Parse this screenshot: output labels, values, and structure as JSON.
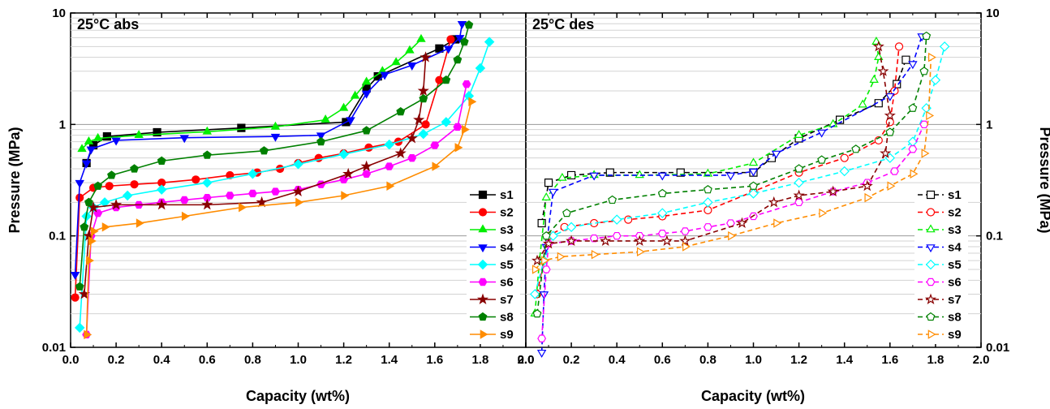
{
  "colors": {
    "s1": "#000000",
    "s2": "#ff0000",
    "s3": "#00ee00",
    "s4": "#0000ff",
    "s5": "#00ffff",
    "s6": "#ff00ff",
    "s7": "#880000",
    "s8": "#008000",
    "s9": "#ff8c00"
  },
  "chart_data": [
    {
      "type": "scatter",
      "title": "25°C abs",
      "xlabel": "Capacity (wt%)",
      "ylabel": "Pressure (MPa)",
      "xlim": [
        0.0,
        2.0
      ],
      "ylim": [
        0.01,
        10
      ],
      "yscale": "log",
      "xticks": [
        "0.0",
        "0.2",
        "0.4",
        "0.6",
        "0.8",
        "1.0",
        "1.2",
        "1.4",
        "1.6",
        "1.8",
        "2.0"
      ],
      "yticks": [
        "0.01",
        "0.1",
        "1",
        "10"
      ],
      "grid": true,
      "legend": "right",
      "marker_style": "filled",
      "line_style": "solid",
      "series": [
        {
          "name": "s1",
          "marker": "square",
          "x": [
            0.07,
            0.1,
            0.16,
            0.38,
            0.75,
            1.21,
            1.3,
            1.35,
            1.62,
            1.69
          ],
          "y": [
            0.45,
            0.65,
            0.78,
            0.85,
            0.93,
            1.05,
            2.1,
            2.7,
            4.8,
            5.8
          ]
        },
        {
          "name": "s2",
          "marker": "circle",
          "x": [
            0.02,
            0.04,
            0.1,
            0.17,
            0.28,
            0.4,
            0.55,
            0.7,
            0.82,
            0.92,
            1.0,
            1.09,
            1.2,
            1.31,
            1.44,
            1.56,
            1.62,
            1.67
          ],
          "y": [
            0.028,
            0.22,
            0.27,
            0.28,
            0.29,
            0.3,
            0.32,
            0.35,
            0.37,
            0.4,
            0.45,
            0.5,
            0.55,
            0.62,
            0.7,
            1.0,
            2.5,
            5.8
          ]
        },
        {
          "name": "s3",
          "marker": "triangle-up",
          "x": [
            0.05,
            0.08,
            0.12,
            0.3,
            0.6,
            0.9,
            1.12,
            1.2,
            1.25,
            1.3,
            1.37,
            1.43,
            1.49,
            1.54
          ],
          "y": [
            0.6,
            0.7,
            0.75,
            0.8,
            0.86,
            0.95,
            1.1,
            1.4,
            1.8,
            2.4,
            3.0,
            3.6,
            4.6,
            5.8
          ]
        },
        {
          "name": "s4",
          "marker": "triangle-down",
          "x": [
            0.02,
            0.04,
            0.07,
            0.09,
            0.2,
            0.5,
            0.9,
            1.1,
            1.23,
            1.3,
            1.38,
            1.5,
            1.66,
            1.71,
            1.72
          ],
          "y": [
            0.045,
            0.3,
            0.45,
            0.6,
            0.72,
            0.76,
            0.78,
            0.8,
            1.1,
            1.9,
            2.8,
            3.4,
            4.8,
            6.0,
            8.0
          ]
        },
        {
          "name": "s5",
          "marker": "diamond",
          "x": [
            0.04,
            0.07,
            0.1,
            0.15,
            0.25,
            0.4,
            0.6,
            0.8,
            1.0,
            1.2,
            1.4,
            1.55,
            1.65,
            1.75,
            1.8,
            1.84
          ],
          "y": [
            0.015,
            0.15,
            0.18,
            0.2,
            0.23,
            0.26,
            0.3,
            0.36,
            0.44,
            0.54,
            0.66,
            0.82,
            1.05,
            1.8,
            3.2,
            5.5
          ]
        },
        {
          "name": "s6",
          "marker": "hexagon",
          "x": [
            0.07,
            0.09,
            0.12,
            0.2,
            0.3,
            0.4,
            0.5,
            0.6,
            0.7,
            0.8,
            0.9,
            1.0,
            1.1,
            1.2,
            1.3,
            1.4,
            1.5,
            1.6,
            1.7,
            1.74
          ],
          "y": [
            0.013,
            0.1,
            0.16,
            0.18,
            0.19,
            0.2,
            0.21,
            0.22,
            0.23,
            0.24,
            0.25,
            0.26,
            0.29,
            0.32,
            0.36,
            0.42,
            0.5,
            0.65,
            0.95,
            2.3
          ]
        },
        {
          "name": "s7",
          "marker": "star",
          "x": [
            0.06,
            0.08,
            0.1,
            0.2,
            0.4,
            0.6,
            0.84,
            1.0,
            1.22,
            1.3,
            1.45,
            1.5,
            1.53,
            1.55,
            1.56
          ],
          "y": [
            0.03,
            0.1,
            0.18,
            0.19,
            0.19,
            0.19,
            0.2,
            0.25,
            0.36,
            0.42,
            0.55,
            0.75,
            1.1,
            2.0,
            4.0
          ]
        },
        {
          "name": "s8",
          "marker": "pentagon",
          "x": [
            0.04,
            0.06,
            0.08,
            0.12,
            0.18,
            0.28,
            0.4,
            0.6,
            0.85,
            1.1,
            1.3,
            1.45,
            1.55,
            1.65,
            1.7,
            1.73,
            1.75
          ],
          "y": [
            0.035,
            0.12,
            0.2,
            0.28,
            0.35,
            0.4,
            0.47,
            0.53,
            0.58,
            0.7,
            0.88,
            1.3,
            1.7,
            2.5,
            3.8,
            5.5,
            7.8
          ]
        },
        {
          "name": "s9",
          "marker": "triangle-right",
          "x": [
            0.07,
            0.08,
            0.09,
            0.1,
            0.15,
            0.3,
            0.5,
            0.75,
            1.0,
            1.2,
            1.4,
            1.6,
            1.7,
            1.73,
            1.76
          ],
          "y": [
            0.013,
            0.06,
            0.09,
            0.11,
            0.12,
            0.13,
            0.15,
            0.18,
            0.2,
            0.23,
            0.28,
            0.42,
            0.62,
            0.9,
            1.6
          ]
        }
      ]
    },
    {
      "type": "scatter",
      "title": "25°C des",
      "xlabel": "Capacity (wt%)",
      "ylabel": "Pressure (MPa)",
      "xlim": [
        0.0,
        2.0
      ],
      "ylim": [
        0.01,
        10
      ],
      "yscale": "log",
      "xticks": [
        "0.0",
        "0.2",
        "0.4",
        "0.6",
        "0.8",
        "1.0",
        "1.2",
        "1.4",
        "1.6",
        "1.8",
        "2.0"
      ],
      "yticks": [
        "0.01",
        "0.1",
        "1",
        "10"
      ],
      "grid": true,
      "legend": "right",
      "marker_style": "open",
      "line_style": "dashed",
      "series": [
        {
          "name": "s1",
          "marker": "square",
          "x": [
            0.07,
            0.1,
            0.2,
            0.37,
            0.68,
            1.0,
            1.08,
            1.2,
            1.38,
            1.55,
            1.63,
            1.67
          ],
          "y": [
            0.13,
            0.3,
            0.35,
            0.37,
            0.37,
            0.37,
            0.5,
            0.75,
            1.1,
            1.55,
            2.3,
            3.8
          ]
        },
        {
          "name": "s2",
          "marker": "circle",
          "x": [
            0.05,
            0.1,
            0.17,
            0.3,
            0.45,
            0.6,
            0.8,
            1.0,
            1.2,
            1.4,
            1.55,
            1.6,
            1.62,
            1.64
          ],
          "y": [
            0.03,
            0.1,
            0.12,
            0.13,
            0.14,
            0.15,
            0.17,
            0.25,
            0.37,
            0.5,
            0.72,
            1.05,
            2.0,
            5.0
          ]
        },
        {
          "name": "s3",
          "marker": "triangle-up",
          "x": [
            0.04,
            0.06,
            0.09,
            0.16,
            0.3,
            0.5,
            0.8,
            1.0,
            1.2,
            1.35,
            1.48,
            1.53,
            1.55,
            1.54
          ],
          "y": [
            0.02,
            0.06,
            0.22,
            0.33,
            0.35,
            0.35,
            0.36,
            0.45,
            0.8,
            1.0,
            1.5,
            2.5,
            4.0,
            5.5
          ]
        },
        {
          "name": "s4",
          "marker": "triangle-down",
          "x": [
            0.07,
            0.08,
            0.09,
            0.12,
            0.3,
            0.6,
            0.9,
            1.0,
            1.1,
            1.3,
            1.6,
            1.7,
            1.74
          ],
          "y": [
            0.009,
            0.03,
            0.08,
            0.25,
            0.35,
            0.35,
            0.35,
            0.38,
            0.55,
            0.85,
            1.8,
            3.5,
            6.2
          ]
        },
        {
          "name": "s5",
          "marker": "diamond",
          "x": [
            0.04,
            0.08,
            0.12,
            0.2,
            0.4,
            0.6,
            0.8,
            1.0,
            1.2,
            1.4,
            1.6,
            1.7,
            1.76,
            1.8,
            1.84
          ],
          "y": [
            0.03,
            0.06,
            0.1,
            0.12,
            0.14,
            0.16,
            0.2,
            0.24,
            0.3,
            0.38,
            0.5,
            0.7,
            1.4,
            2.5,
            5.0
          ]
        },
        {
          "name": "s6",
          "marker": "hexagon",
          "x": [
            0.07,
            0.09,
            0.1,
            0.2,
            0.3,
            0.4,
            0.5,
            0.6,
            0.7,
            0.8,
            0.9,
            1.0,
            1.2,
            1.35,
            1.5,
            1.62,
            1.7,
            1.75
          ],
          "y": [
            0.012,
            0.05,
            0.085,
            0.09,
            0.095,
            0.1,
            0.1,
            0.105,
            0.11,
            0.12,
            0.13,
            0.15,
            0.2,
            0.25,
            0.3,
            0.38,
            0.6,
            1.0
          ]
        },
        {
          "name": "s7",
          "marker": "star",
          "x": [
            0.05,
            0.1,
            0.2,
            0.35,
            0.5,
            0.62,
            0.7,
            0.95,
            1.09,
            1.2,
            1.35,
            1.5,
            1.58,
            1.6,
            1.57,
            1.55
          ],
          "y": [
            0.06,
            0.085,
            0.09,
            0.09,
            0.09,
            0.09,
            0.09,
            0.13,
            0.2,
            0.23,
            0.25,
            0.28,
            0.55,
            1.2,
            3.0,
            5.0
          ]
        },
        {
          "name": "s8",
          "marker": "pentagon",
          "x": [
            0.05,
            0.09,
            0.18,
            0.38,
            0.6,
            0.8,
            1.0,
            1.2,
            1.3,
            1.45,
            1.6,
            1.7,
            1.75,
            1.76
          ],
          "y": [
            0.02,
            0.1,
            0.16,
            0.21,
            0.24,
            0.26,
            0.28,
            0.4,
            0.48,
            0.6,
            0.85,
            1.4,
            3.0,
            6.2
          ]
        },
        {
          "name": "s9",
          "marker": "triangle-right",
          "x": [
            0.04,
            0.08,
            0.15,
            0.3,
            0.5,
            0.7,
            0.9,
            1.1,
            1.3,
            1.5,
            1.6,
            1.7,
            1.75,
            1.77,
            1.78
          ],
          "y": [
            0.05,
            0.06,
            0.065,
            0.068,
            0.072,
            0.08,
            0.1,
            0.13,
            0.16,
            0.22,
            0.28,
            0.36,
            0.55,
            1.2,
            4.0
          ]
        }
      ]
    }
  ]
}
